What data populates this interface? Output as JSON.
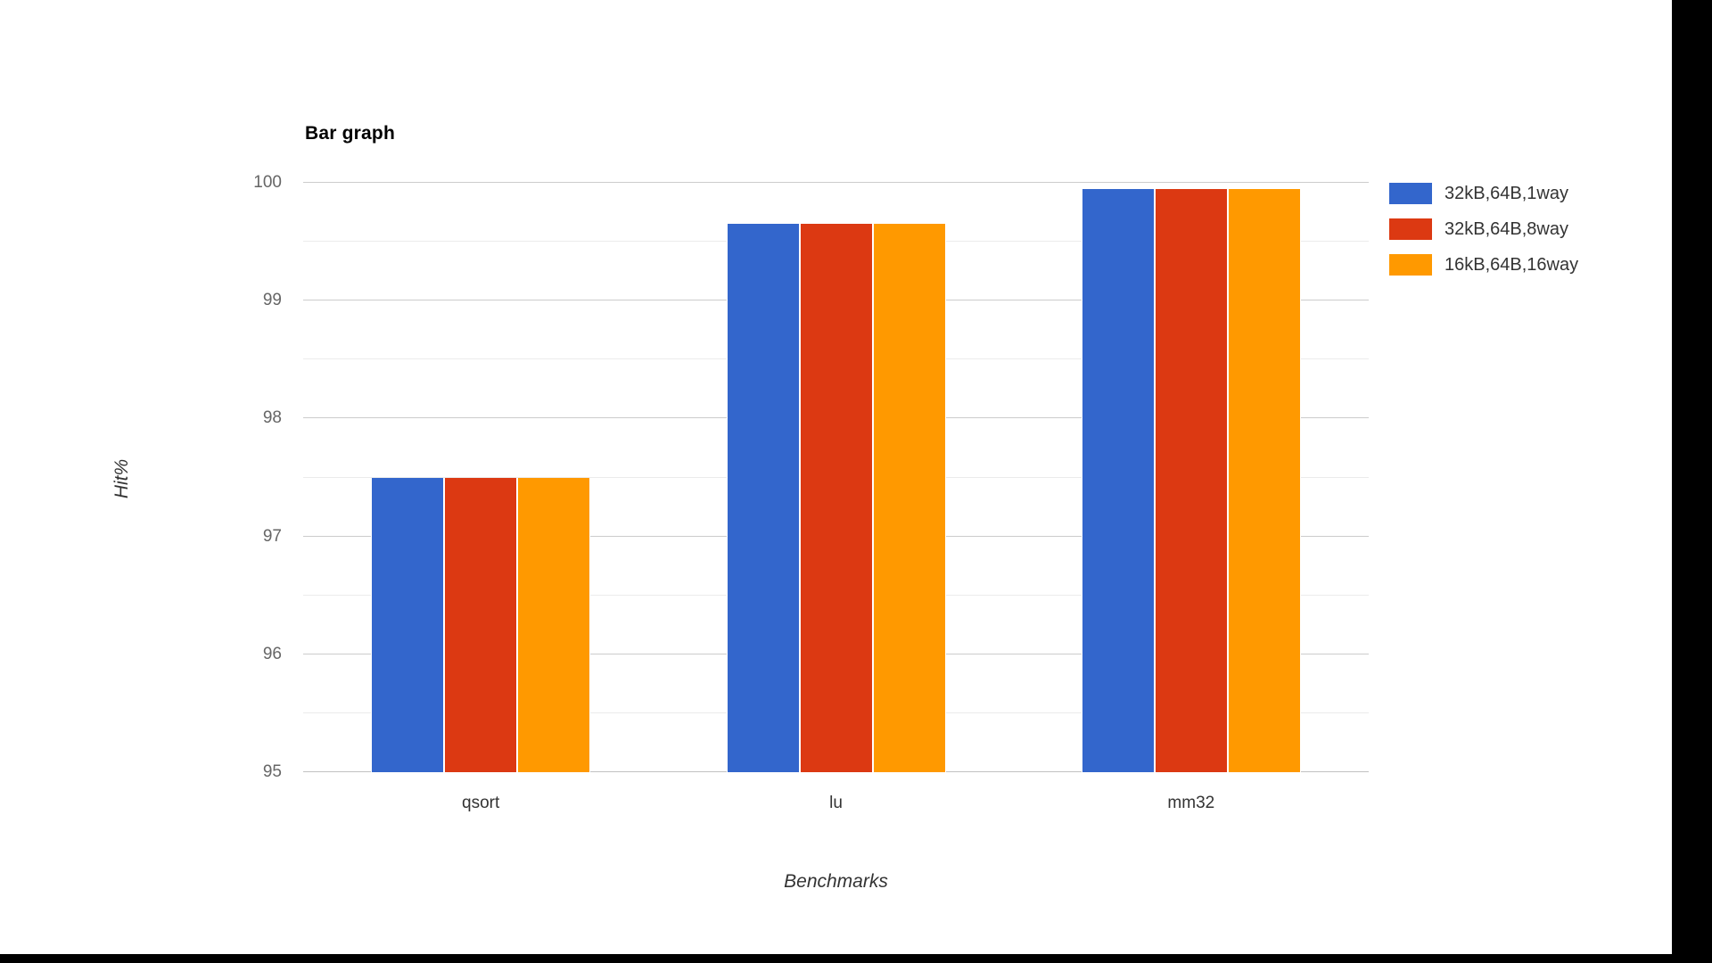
{
  "window": {
    "background_color": "#ffffff",
    "right_bar_color": "#000000",
    "bottom_bar_color": "#000000"
  },
  "chart_data": {
    "type": "bar",
    "title": "Bar graph",
    "xlabel": "Benchmarks",
    "ylabel": "Hit%",
    "categories": [
      "qsort",
      "lu",
      "mm32"
    ],
    "series": [
      {
        "name": "32kB,64B,1way",
        "color": "#3366cc",
        "values": [
          97.5,
          99.65,
          99.95
        ]
      },
      {
        "name": "32kB,64B,8way",
        "color": "#dc3912",
        "values": [
          97.5,
          99.65,
          99.95
        ]
      },
      {
        "name": "16kB,64B,16way",
        "color": "#ff9900",
        "values": [
          97.5,
          99.65,
          99.95
        ]
      }
    ],
    "ylim": [
      95,
      100
    ],
    "yticks": [
      95,
      96,
      97,
      98,
      99,
      100
    ],
    "minor_gridline_step": 0.5,
    "grid": true,
    "legend_position": "right",
    "gridline_major_color": "#cccccc",
    "gridline_minor_color": "#ebebeb"
  }
}
